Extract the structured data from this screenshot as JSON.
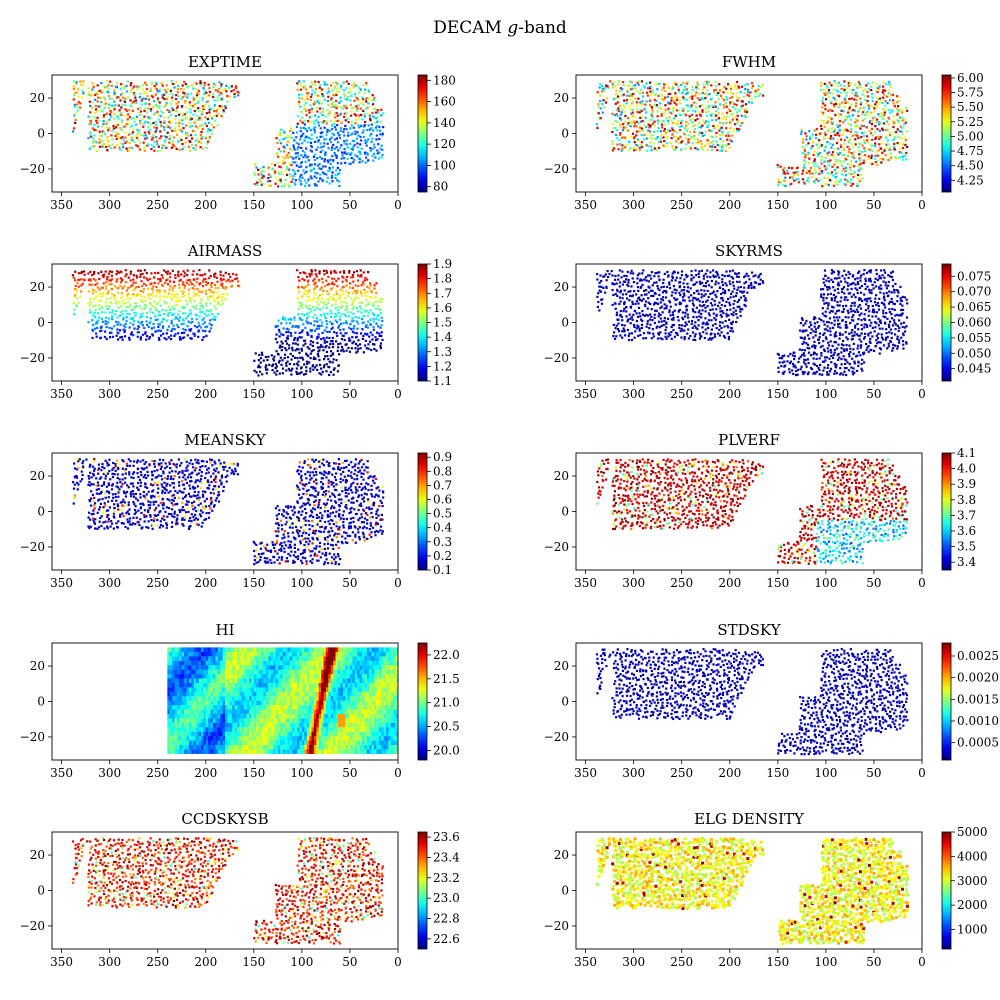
{
  "figure": {
    "title": "DECAM g-band"
  },
  "chart_data": [
    {
      "type": "scatter",
      "title": "EXPTIME",
      "field": "uniform",
      "clim": [
        75,
        185
      ],
      "cbar_ticks": [
        80,
        100,
        120,
        140,
        160,
        180
      ]
    },
    {
      "type": "scatter",
      "title": "FWHM",
      "field": "uniform",
      "clim": [
        4.05,
        6.05
      ],
      "cbar_ticks": [
        4.25,
        4.5,
        4.75,
        5.0,
        5.25,
        5.5,
        5.75,
        6.0
      ]
    },
    {
      "type": "scatter",
      "title": "AIRMASS",
      "field": "dec",
      "clim": [
        1.1,
        1.9
      ],
      "cbar_ticks": [
        1.1,
        1.2,
        1.3,
        1.4,
        1.5,
        1.6,
        1.7,
        1.8,
        1.9
      ]
    },
    {
      "type": "scatter",
      "title": "SKYRMS",
      "field": "low",
      "clim": [
        0.041,
        0.079
      ],
      "cbar_ticks": [
        0.045,
        0.05,
        0.055,
        0.06,
        0.065,
        0.07,
        0.075
      ]
    },
    {
      "type": "scatter",
      "title": "MEANSKY",
      "field": "lowspeck",
      "clim": [
        0.1,
        0.93
      ],
      "cbar_ticks": [
        0.1,
        0.2,
        0.3,
        0.4,
        0.5,
        0.6,
        0.7,
        0.8,
        0.9
      ]
    },
    {
      "type": "scatter",
      "title": "PLVERF",
      "field": "high",
      "clim": [
        3.35,
        4.1
      ],
      "cbar_ticks": [
        3.4,
        3.5,
        3.6,
        3.7,
        3.8,
        3.9,
        4.0,
        4.1
      ]
    },
    {
      "type": "heatmap",
      "title": "HI",
      "field": "hi",
      "clim": [
        19.8,
        22.25
      ],
      "cbar_ticks": [
        20.0,
        20.5,
        21.0,
        21.5,
        22.0
      ]
    },
    {
      "type": "scatter",
      "title": "STDSKY",
      "field": "low",
      "clim": [
        0.0001,
        0.0028
      ],
      "cbar_ticks": [
        0.0005,
        0.001,
        0.0015,
        0.002,
        0.0025
      ]
    },
    {
      "type": "scatter",
      "title": "CCDSKYSB",
      "field": "highmid",
      "clim": [
        22.5,
        23.65
      ],
      "cbar_ticks": [
        22.6,
        22.8,
        23.0,
        23.2,
        23.4,
        23.6
      ]
    },
    {
      "type": "scatter",
      "title": "ELG DENSITY",
      "field": "elg",
      "clim": [
        200,
        5000
      ],
      "cbar_ticks": [
        1000,
        2000,
        3000,
        4000,
        5000
      ]
    }
  ],
  "shared_axes": {
    "x_ticks": [
      350,
      300,
      250,
      200,
      150,
      100,
      50,
      0
    ],
    "y_ticks": [
      20,
      0,
      -20
    ],
    "xlim": [
      360,
      0
    ],
    "ylim": [
      -33,
      33
    ],
    "colormap": "jet"
  }
}
